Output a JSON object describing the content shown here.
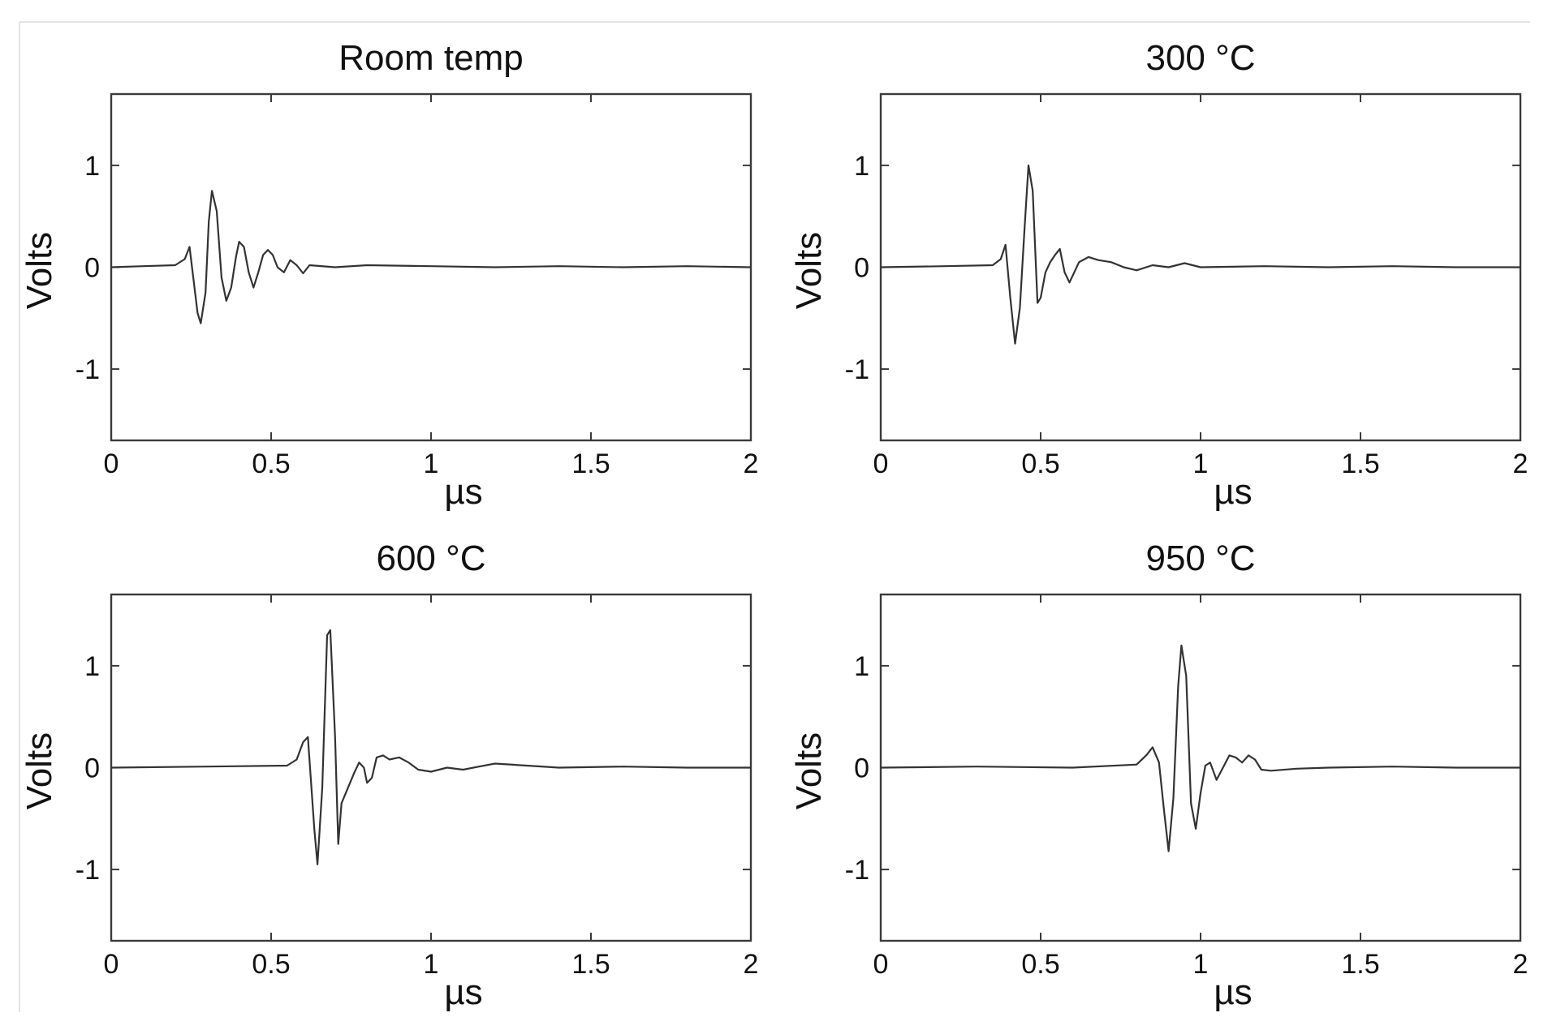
{
  "chart_data": [
    {
      "type": "line",
      "title": "Room temp",
      "xlabel": "µs",
      "ylabel": "Volts",
      "xlim": [
        0,
        2
      ],
      "ylim": [
        -1.7,
        1.7
      ],
      "x_ticks": [
        "0",
        "0.5",
        "1",
        "1.5",
        "2"
      ],
      "y_ticks": [
        "1",
        "0",
        "-1"
      ],
      "grid": false,
      "series": [
        {
          "x": [
            0,
            0.1,
            0.2,
            0.23,
            0.245,
            0.27,
            0.28,
            0.295,
            0.305,
            0.315,
            0.33,
            0.345,
            0.36,
            0.375,
            0.39,
            0.4,
            0.415,
            0.43,
            0.445,
            0.46,
            0.475,
            0.49,
            0.505,
            0.52,
            0.54,
            0.56,
            0.58,
            0.6,
            0.62,
            0.7,
            0.8,
            1.0,
            1.2,
            1.4,
            1.6,
            1.8,
            2.0
          ],
          "y": [
            0.0,
            0.01,
            0.02,
            0.08,
            0.2,
            -0.45,
            -0.55,
            -0.25,
            0.45,
            0.75,
            0.55,
            -0.1,
            -0.33,
            -0.2,
            0.1,
            0.25,
            0.2,
            -0.05,
            -0.2,
            -0.05,
            0.12,
            0.17,
            0.12,
            0.0,
            -0.05,
            0.07,
            0.02,
            -0.06,
            0.02,
            0.0,
            0.02,
            0.01,
            0.0,
            0.01,
            0.0,
            0.01,
            0.0
          ]
        }
      ]
    },
    {
      "type": "line",
      "title": "300 °C",
      "xlabel": "µs",
      "ylabel": "Volts",
      "xlim": [
        0,
        2
      ],
      "ylim": [
        -1.7,
        1.7
      ],
      "x_ticks": [
        "0",
        "0.5",
        "1",
        "1.5",
        "2"
      ],
      "y_ticks": [
        "1",
        "0",
        "-1"
      ],
      "grid": false,
      "series": [
        {
          "x": [
            0,
            0.2,
            0.35,
            0.375,
            0.39,
            0.405,
            0.42,
            0.435,
            0.45,
            0.462,
            0.475,
            0.49,
            0.5,
            0.515,
            0.53,
            0.545,
            0.56,
            0.575,
            0.59,
            0.62,
            0.65,
            0.68,
            0.72,
            0.76,
            0.8,
            0.85,
            0.9,
            0.95,
            1.0,
            1.2,
            1.4,
            1.6,
            1.8,
            2.0
          ],
          "y": [
            0.0,
            0.01,
            0.02,
            0.08,
            0.22,
            -0.3,
            -0.75,
            -0.4,
            0.4,
            1.0,
            0.75,
            -0.35,
            -0.3,
            -0.05,
            0.05,
            0.12,
            0.18,
            -0.05,
            -0.15,
            0.05,
            0.1,
            0.07,
            0.05,
            0.0,
            -0.03,
            0.02,
            0.0,
            0.04,
            0.0,
            0.01,
            0.0,
            0.01,
            0.0,
            0.0
          ]
        }
      ]
    },
    {
      "type": "line",
      "title": "600 °C",
      "xlabel": "µs",
      "ylabel": "Volts",
      "xlim": [
        0,
        2
      ],
      "ylim": [
        -1.7,
        1.7
      ],
      "x_ticks": [
        "0",
        "0.5",
        "1",
        "1.5",
        "2"
      ],
      "y_ticks": [
        "1",
        "0",
        "-1"
      ],
      "grid": false,
      "series": [
        {
          "x": [
            0,
            0.3,
            0.55,
            0.58,
            0.6,
            0.615,
            0.635,
            0.645,
            0.66,
            0.675,
            0.685,
            0.7,
            0.71,
            0.72,
            0.74,
            0.76,
            0.775,
            0.79,
            0.8,
            0.815,
            0.83,
            0.85,
            0.87,
            0.9,
            0.93,
            0.96,
            1.0,
            1.05,
            1.1,
            1.15,
            1.2,
            1.4,
            1.6,
            1.8,
            2.0
          ],
          "y": [
            0.0,
            0.01,
            0.02,
            0.08,
            0.25,
            0.3,
            -0.6,
            -0.95,
            -0.2,
            1.3,
            1.35,
            0.3,
            -0.75,
            -0.35,
            -0.2,
            -0.05,
            0.05,
            0.0,
            -0.15,
            -0.1,
            0.1,
            0.12,
            0.08,
            0.1,
            0.05,
            -0.02,
            -0.04,
            0.0,
            -0.02,
            0.01,
            0.04,
            0.0,
            0.01,
            0.0,
            0.0
          ]
        }
      ]
    },
    {
      "type": "line",
      "title": "950 °C",
      "xlabel": "µs",
      "ylabel": "Volts",
      "xlim": [
        0,
        2
      ],
      "ylim": [
        -1.7,
        1.7
      ],
      "x_ticks": [
        "0",
        "0.5",
        "1",
        "1.5",
        "2"
      ],
      "y_ticks": [
        "1",
        "0",
        "-1"
      ],
      "grid": false,
      "series": [
        {
          "x": [
            0,
            0.3,
            0.6,
            0.8,
            0.83,
            0.85,
            0.87,
            0.885,
            0.9,
            0.915,
            0.93,
            0.94,
            0.955,
            0.97,
            0.985,
            1.0,
            1.015,
            1.03,
            1.05,
            1.07,
            1.09,
            1.11,
            1.13,
            1.15,
            1.17,
            1.19,
            1.22,
            1.3,
            1.4,
            1.6,
            1.8,
            2.0
          ],
          "y": [
            0.0,
            0.01,
            0.0,
            0.03,
            0.12,
            0.2,
            0.05,
            -0.4,
            -0.82,
            -0.3,
            0.8,
            1.2,
            0.9,
            -0.35,
            -0.6,
            -0.25,
            0.02,
            0.05,
            -0.12,
            0.0,
            0.12,
            0.1,
            0.05,
            0.12,
            0.08,
            -0.02,
            -0.03,
            -0.01,
            0.0,
            0.01,
            0.0,
            0.0
          ]
        }
      ]
    }
  ]
}
